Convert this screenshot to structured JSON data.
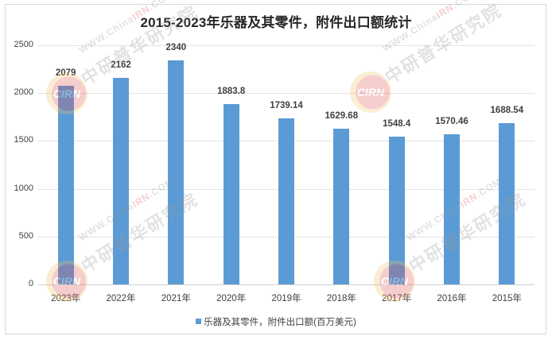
{
  "chart_data": {
    "type": "bar",
    "title": "2015-2023年乐器及其零件，附件出口额统计",
    "xlabel": "",
    "ylabel": "",
    "categories": [
      "2023年",
      "2022年",
      "2021年",
      "2020年",
      "2019年",
      "2018年",
      "2017年",
      "2016年",
      "2015年"
    ],
    "series": [
      {
        "name": "乐器及其零件，附件出口额(百万美元)",
        "color": "#5b9bd5",
        "values": [
          2079,
          2162,
          2340,
          1883.8,
          1739.14,
          1629.68,
          1548.4,
          1570.46,
          1688.54
        ],
        "labels": [
          "2079",
          "2162",
          "2340",
          "1883.8",
          "1739.14",
          "1629.68",
          "1548.4",
          "1570.46",
          "1688.54"
        ]
      }
    ],
    "ylim": [
      0,
      2500
    ],
    "yticks": [
      "0",
      "500",
      "1000",
      "1500",
      "2000",
      "2500"
    ],
    "grid": true,
    "legend_position": "bottom"
  },
  "watermark": {
    "logo_text": "CIRN",
    "url_prefix": "WWW.China",
    "url_highlight": "IRN",
    "url_suffix": ".COM",
    "brand": "中研普华研究院"
  }
}
